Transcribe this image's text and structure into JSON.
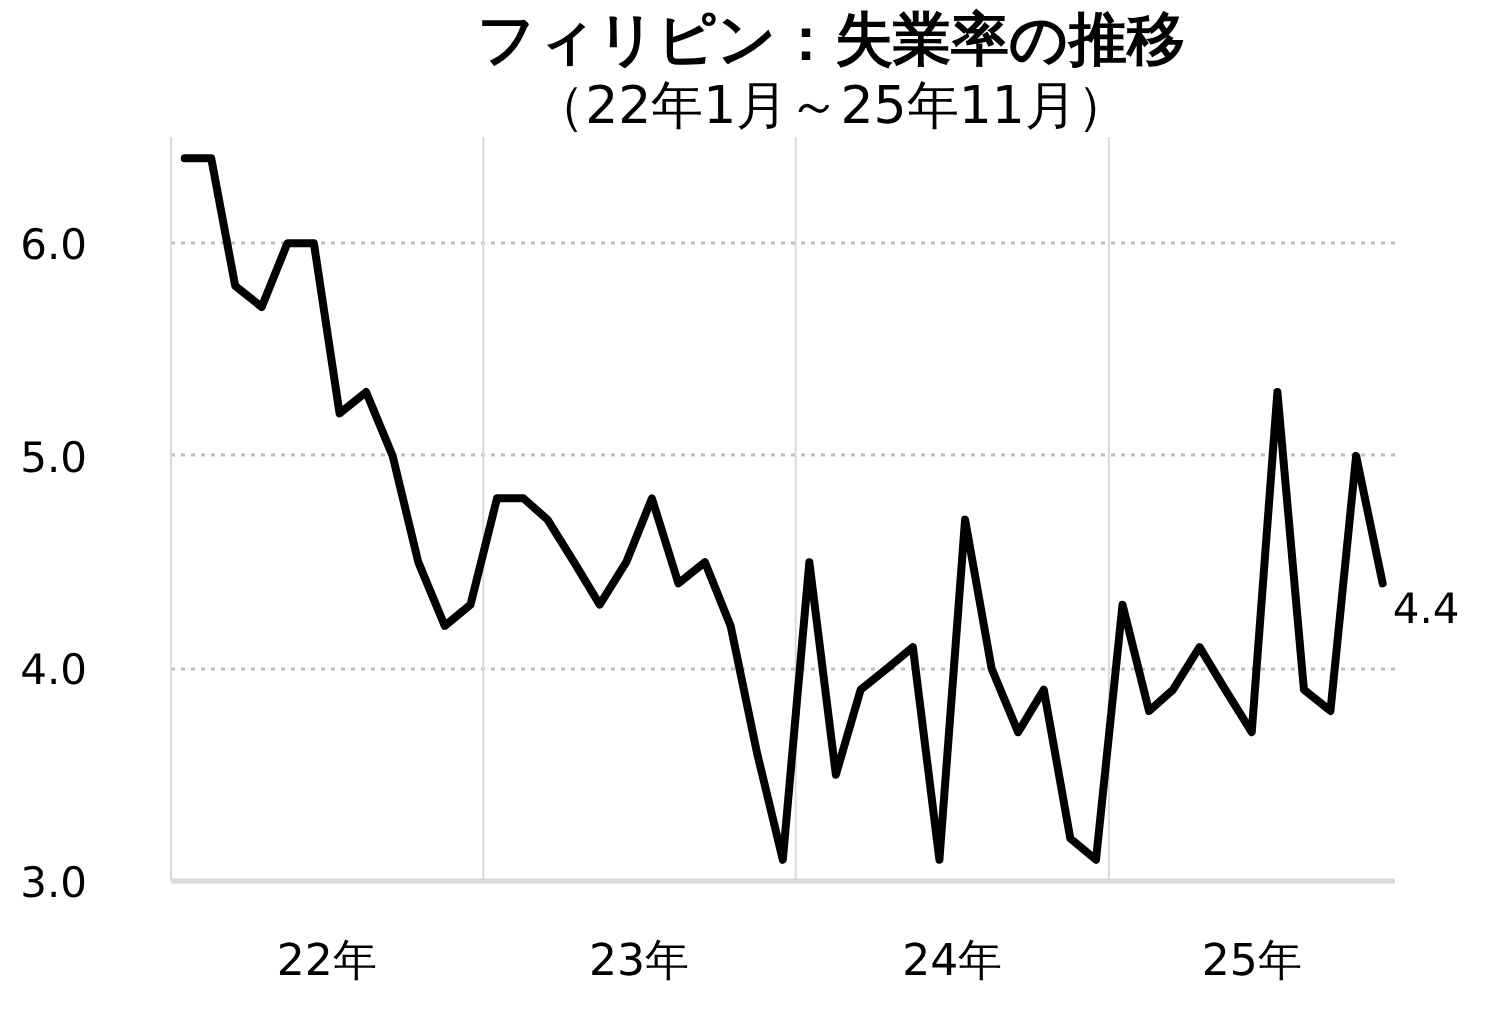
{
  "chart_data": {
    "type": "line",
    "title": "フィリピン：失業率の推移",
    "subtitle": "（22年1月～25年11月）",
    "x": [
      "2022-01",
      "2022-02",
      "2022-03",
      "2022-04",
      "2022-05",
      "2022-06",
      "2022-07",
      "2022-08",
      "2022-09",
      "2022-10",
      "2022-11",
      "2022-12",
      "2023-01",
      "2023-02",
      "2023-03",
      "2023-04",
      "2023-05",
      "2023-06",
      "2023-07",
      "2023-08",
      "2023-09",
      "2023-10",
      "2023-11",
      "2023-12",
      "2024-01",
      "2024-02",
      "2024-03",
      "2024-04",
      "2024-05",
      "2024-06",
      "2024-07",
      "2024-08",
      "2024-09",
      "2024-10",
      "2024-11",
      "2024-12",
      "2025-01",
      "2025-02",
      "2025-03",
      "2025-04",
      "2025-05",
      "2025-06",
      "2025-07",
      "2025-08",
      "2025-09",
      "2025-10",
      "2025-11"
    ],
    "series": [
      {
        "color": "#000000",
        "values": [
          6.4,
          6.4,
          5.8,
          5.7,
          6.0,
          6.0,
          5.2,
          5.3,
          5.0,
          4.5,
          4.2,
          4.3,
          4.8,
          4.8,
          4.7,
          4.5,
          4.3,
          4.5,
          4.8,
          4.4,
          4.5,
          4.2,
          3.6,
          3.1,
          4.5,
          3.5,
          3.9,
          4.0,
          4.1,
          3.1,
          4.7,
          4.0,
          3.7,
          3.9,
          3.2,
          3.1,
          4.3,
          3.8,
          3.9,
          4.1,
          3.9,
          3.7,
          5.3,
          3.9,
          3.8,
          5.0,
          4.4
        ],
        "value_labels": [
          null,
          null,
          null,
          null,
          null,
          null,
          null,
          null,
          null,
          null,
          null,
          null,
          null,
          null,
          null,
          null,
          null,
          null,
          null,
          null,
          null,
          null,
          null,
          null,
          null,
          null,
          null,
          null,
          null,
          null,
          null,
          null,
          null,
          null,
          null,
          null,
          null,
          null,
          null,
          null,
          null,
          null,
          null,
          null,
          null,
          null,
          "4.4"
        ]
      }
    ],
    "xlim": [
      "2021-12-16",
      "2025-11-16"
    ],
    "xticks": [
      {
        "value": "2022-06-16",
        "label": "22年"
      },
      {
        "value": "2023-06-16",
        "label": "23年"
      },
      {
        "value": "2024-06-16",
        "label": "24年"
      },
      {
        "value": "2025-06-01",
        "label": "25年"
      }
    ],
    "ylim": [
      3.0,
      6.5
    ],
    "yticks": [
      {
        "value": 3,
        "label": "3.0"
      },
      {
        "value": 4,
        "label": "4.0"
      },
      {
        "value": 5,
        "label": "5.0"
      },
      {
        "value": 6,
        "label": "6.0"
      }
    ],
    "ref_lines": [
      {
        "axis": "x",
        "value": "2022-12-16",
        "color": "#d9d9d9",
        "line_style": "solid"
      },
      {
        "axis": "x",
        "value": "2023-12-16",
        "color": "#d9d9d9",
        "line_style": "solid"
      },
      {
        "axis": "x",
        "value": "2024-12-16",
        "color": "#d9d9d9",
        "line_style": "solid"
      }
    ],
    "grid": "y",
    "line_style": "solid"
  }
}
